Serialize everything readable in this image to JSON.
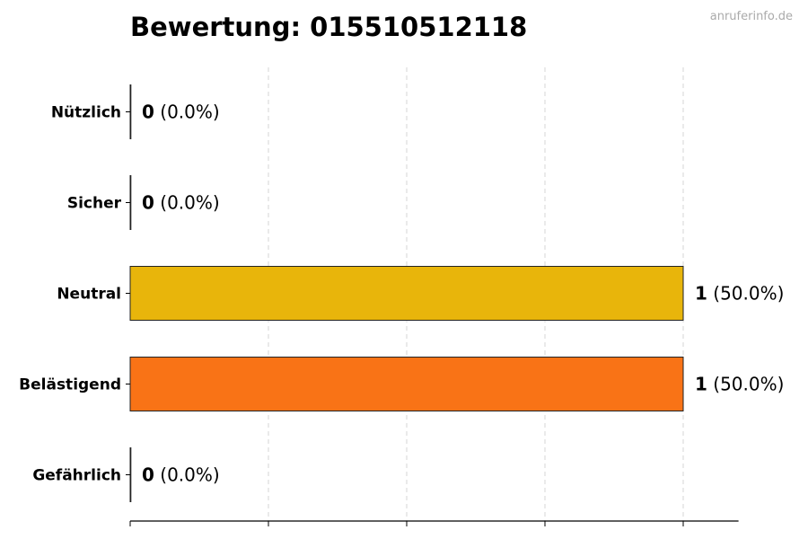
{
  "watermark": "anruferinfo.de",
  "chart_data": {
    "type": "bar",
    "orientation": "horizontal",
    "title": "Bewertung: 015510512118",
    "categories": [
      "Nützlich",
      "Sicher",
      "Neutral",
      "Belästigend",
      "Gefährlich"
    ],
    "values": [
      0,
      0,
      1,
      1,
      0
    ],
    "value_labels": [
      "0",
      "0",
      "1",
      "1",
      "0"
    ],
    "percent_labels": [
      "(0.0%)",
      "(0.0%)",
      "(50.0%)",
      "(50.0%)",
      "(0.0%)"
    ],
    "colors": [
      "#22c55e",
      "#3b82f6",
      "#E8B50B",
      "#F97316",
      "#dc2626"
    ],
    "xlim": [
      0,
      1.1
    ],
    "xticks": [
      0,
      0.25,
      0.5,
      0.75,
      1.0
    ],
    "xtick_labels_visible": false,
    "grid": "x-dashed",
    "xlabel": "",
    "ylabel": ""
  }
}
